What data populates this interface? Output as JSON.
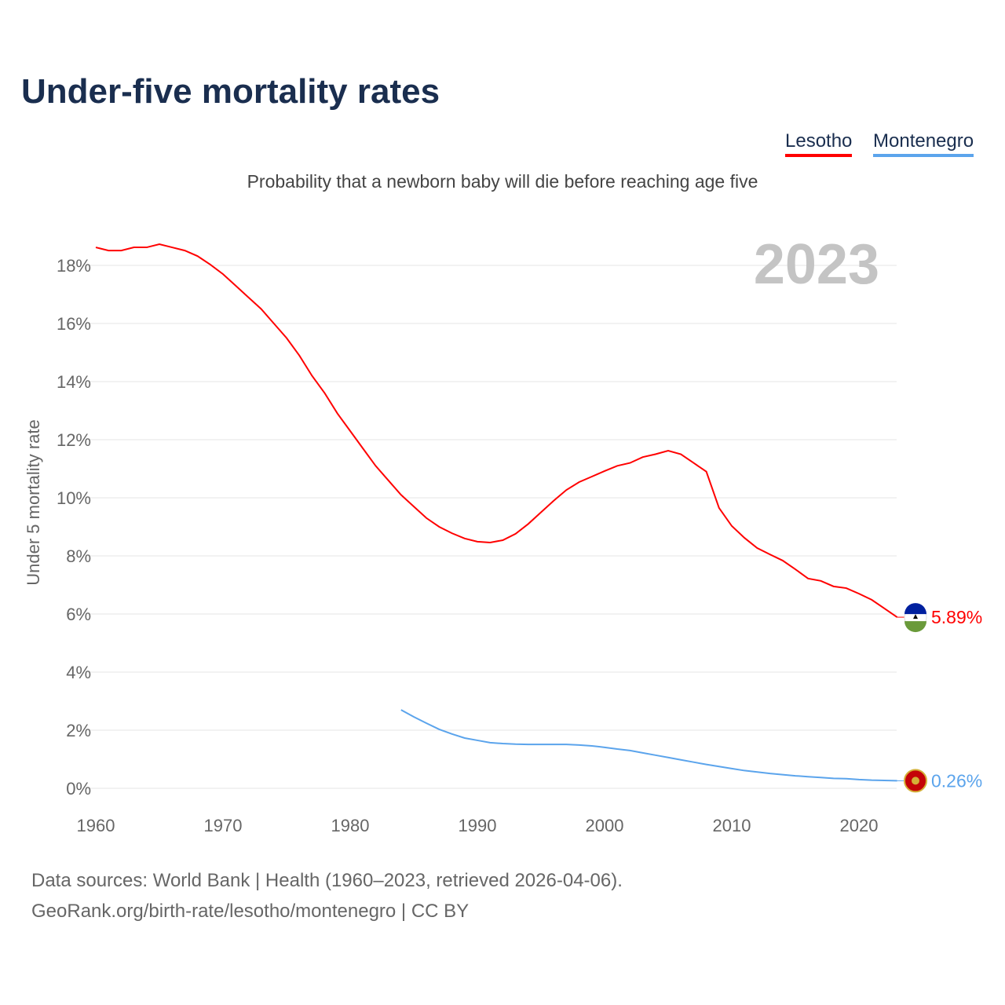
{
  "title": "Under-five mortality rates",
  "subtitle": "Probability that a newborn baby will die before reaching age five",
  "footer": {
    "line1": "Data sources: World Bank | Health (1960–2023, retrieved 2026-04-06).",
    "line2": "GeoRank.org/birth-rate/lesotho/montenegro | CC BY"
  },
  "chart_data": {
    "type": "line",
    "title": "Under-five mortality rates",
    "ylabel": "Under 5 mortality rate",
    "year_label": "2023",
    "xlim": [
      1960,
      2023
    ],
    "ylim": [
      0,
      18.6
    ],
    "xticks": [
      1960,
      1970,
      1980,
      1990,
      2000,
      2010,
      2020
    ],
    "yticks": [
      0,
      2,
      4,
      6,
      8,
      10,
      12,
      14,
      16,
      18
    ],
    "ytick_suffix": "%",
    "grid": true,
    "legend_placement": "top-right",
    "series": [
      {
        "name": "Lesotho",
        "color": "#ff0000",
        "end_label": "5.89%",
        "start": 1960,
        "values": [
          18.62,
          18.51,
          18.51,
          18.62,
          18.62,
          18.73,
          18.62,
          18.51,
          18.32,
          18.03,
          17.7,
          17.3,
          16.9,
          16.5,
          16.0,
          15.5,
          14.9,
          14.2,
          13.6,
          12.9,
          12.3,
          11.7,
          11.1,
          10.6,
          10.1,
          9.7,
          9.3,
          9.0,
          8.78,
          8.6,
          8.49,
          8.46,
          8.54,
          8.76,
          9.1,
          9.5,
          9.9,
          10.27,
          10.54,
          10.73,
          10.92,
          11.1,
          11.2,
          11.4,
          11.5,
          11.62,
          11.5,
          11.2,
          10.9,
          9.65,
          9.03,
          8.62,
          8.27,
          8.05,
          7.84,
          7.54,
          7.22,
          7.14,
          6.95,
          6.89,
          6.7,
          6.49,
          6.19,
          5.89
        ]
      },
      {
        "name": "Montenegro",
        "color": "#5ba4ec",
        "end_label": "0.26%",
        "start": 1984,
        "values": [
          2.7,
          2.46,
          2.24,
          2.03,
          1.87,
          1.73,
          1.65,
          1.57,
          1.54,
          1.52,
          1.51,
          1.51,
          1.51,
          1.51,
          1.49,
          1.46,
          1.41,
          1.35,
          1.3,
          1.22,
          1.14,
          1.06,
          0.98,
          0.9,
          0.82,
          0.75,
          0.68,
          0.61,
          0.56,
          0.51,
          0.47,
          0.43,
          0.4,
          0.37,
          0.34,
          0.33,
          0.3,
          0.28,
          0.27,
          0.26
        ]
      }
    ]
  }
}
